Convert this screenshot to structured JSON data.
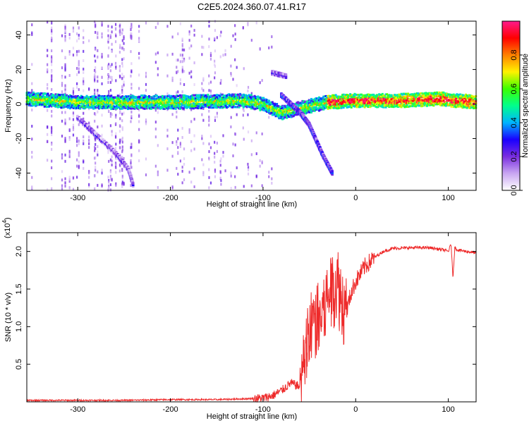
{
  "title": "C2E5.2024.360.07.41.R17",
  "chart_data": [
    {
      "type": "heatmap",
      "title": "C2E5.2024.360.07.41.R17",
      "xlabel": "Height of straight line (km)",
      "ylabel": "Frequency (Hz)",
      "xlim": [
        -355,
        130
      ],
      "ylim": [
        -50,
        48
      ],
      "xticks": [
        -300,
        -200,
        -100,
        0,
        100
      ],
      "yticks": [
        -40,
        -20,
        0,
        20,
        40
      ],
      "colorbar": {
        "label": "Normalized spectral amplitude",
        "range": [
          0.0,
          1.0
        ],
        "ticks": [
          "0.0",
          "0.2",
          "0.4",
          "0.6",
          "0.8"
        ],
        "colors": [
          "#ffffff",
          "#c9a6f2",
          "#7a2ee0",
          "#1a00ff",
          "#00b4ff",
          "#00ff8c",
          "#3cff00",
          "#fff200",
          "#ff8000",
          "#ff0000",
          "#ff1a8c"
        ]
      },
      "features": {
        "main_band": {
          "x": [
            -355,
            130
          ],
          "y": 2,
          "description_points": [
            [
              -355,
              3
            ],
            [
              -300,
              1
            ],
            [
              -200,
              1
            ],
            [
              -120,
              2
            ],
            [
              -100,
              0
            ],
            [
              -80,
              -5
            ],
            [
              -40,
              0
            ],
            [
              -30,
              1
            ],
            [
              0,
              2
            ],
            [
              50,
              2
            ],
            [
              90,
              3
            ],
            [
              130,
              1
            ]
          ]
        },
        "lower_branch": {
          "points": [
            [
              -300,
              -8
            ],
            [
              -280,
              -18
            ],
            [
              -260,
              -28
            ],
            [
              -245,
              -38
            ],
            [
              -240,
              -47
            ]
          ]
        },
        "upper_branch": {
          "points": [
            [
              -90,
              18
            ],
            [
              -75,
              16
            ]
          ]
        },
        "cross_branch": {
          "points": [
            [
              -80,
              5
            ],
            [
              -60,
              -5
            ],
            [
              -50,
              -12
            ],
            [
              -45,
              -18
            ],
            [
              -35,
              -30
            ],
            [
              -25,
              -40
            ]
          ]
        }
      }
    },
    {
      "type": "line",
      "xlabel": "Height of straight line (km)",
      "ylabel": "SNR (10 * v/v)",
      "y_multiplier": "(x10",
      "y_multiplier_exp": "4",
      "y_multiplier_close": ")",
      "xlim": [
        -355,
        130
      ],
      "ylim": [
        0,
        2.25
      ],
      "xticks": [
        -300,
        -200,
        -100,
        0,
        100
      ],
      "yticks": [
        "0.5",
        "1.0",
        "1.5",
        "2.0"
      ],
      "color": "#ee2a2a",
      "series": [
        {
          "x": [
            -355,
            -300,
            -250,
            -200,
            -150,
            -120,
            -100,
            -90,
            -80,
            -70,
            -60,
            -55,
            -50,
            -45,
            -40,
            -35,
            -30,
            -25,
            -20,
            -15,
            -10,
            -5,
            0,
            10,
            20,
            30,
            40,
            60,
            80,
            95,
            100,
            103,
            105,
            107,
            110,
            130
          ],
          "y": [
            0.02,
            0.02,
            0.02,
            0.03,
            0.03,
            0.04,
            0.05,
            0.08,
            0.15,
            0.25,
            0.2,
            0.6,
            0.9,
            1.1,
            1.05,
            1.2,
            1.4,
            1.5,
            1.6,
            1.35,
            1.2,
            1.45,
            1.6,
            1.8,
            1.92,
            2.0,
            2.04,
            2.05,
            2.05,
            2.02,
            2.0,
            2.1,
            1.65,
            2.05,
            2.02,
            1.98
          ]
        }
      ]
    }
  ]
}
